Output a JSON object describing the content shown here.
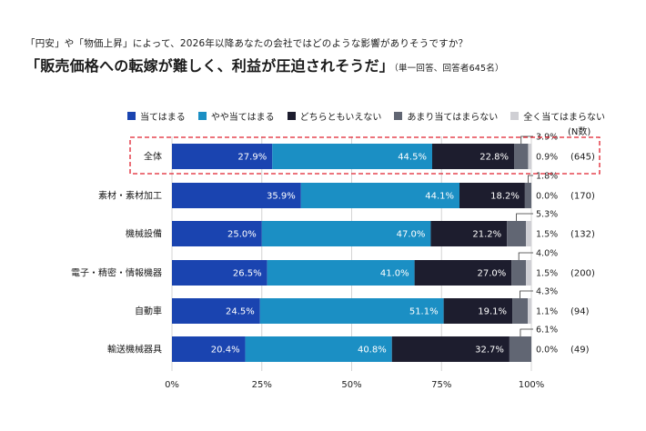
{
  "header": {
    "subtitle": "「円安」や「物価上昇」によって、2026年以降あなたの会社ではどのような影響がありそうですか？",
    "question": "「販売価格への転嫁が難しく、利益が圧迫されそうだ」",
    "note": "（単一回答、回答者645名）"
  },
  "colors": {
    "s1": "#1a44b0",
    "s2": "#1b8fc4",
    "s3": "#1d1d2e",
    "s4": "#616673",
    "s5": "#cfcfd4",
    "highlight": "#e0202e"
  },
  "chart_data": {
    "type": "bar",
    "orientation": "horizontal-stacked-100",
    "series": [
      {
        "name": "当てはまる",
        "values": [
          27.9,
          35.9,
          25.0,
          26.5,
          24.5,
          20.4
        ]
      },
      {
        "name": "やや当てはまる",
        "values": [
          44.5,
          44.1,
          47.0,
          41.0,
          51.1,
          40.8
        ]
      },
      {
        "name": "どちらともいえない",
        "values": [
          22.8,
          18.2,
          21.2,
          27.0,
          19.1,
          32.7
        ]
      },
      {
        "name": "あまり当てはまらない",
        "values": [
          3.9,
          1.8,
          5.3,
          4.0,
          4.3,
          6.1
        ]
      },
      {
        "name": "全く当てはまらない",
        "values": [
          0.9,
          0.0,
          1.5,
          1.5,
          1.1,
          0.0
        ]
      }
    ],
    "categories": [
      "全体",
      "素材・素材加工",
      "機械設備",
      "電子・精密・情報機器",
      "自動車",
      "輸送機械器具"
    ],
    "n_label": "(N数)",
    "n_values": [
      "(645)",
      "(170)",
      "(132)",
      "(200)",
      "(94)",
      "(49)"
    ],
    "x_ticks": [
      "0%",
      "25%",
      "50%",
      "75%",
      "100%"
    ],
    "xlim": [
      0,
      100
    ],
    "highlight_category": "全体"
  }
}
